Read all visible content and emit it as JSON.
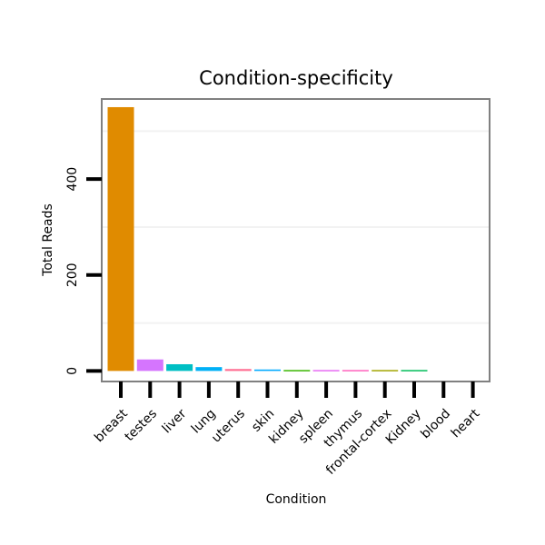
{
  "chart_data": {
    "type": "bar",
    "title": "Condition-specificity",
    "xlabel": "Condition",
    "ylabel": "Total Reads",
    "categories": [
      "breast",
      "testes",
      "liver",
      "lung",
      "uterus",
      "skin",
      "kidney",
      "spleen",
      "thymus",
      "frontal-cortex",
      "Kidney",
      "blood",
      "heart"
    ],
    "values": [
      550,
      24,
      14,
      8,
      4,
      3,
      2,
      2,
      2,
      2,
      2,
      0,
      0
    ],
    "colors": [
      "#E08B00",
      "#D575FE",
      "#00BFC4",
      "#00B0F6",
      "#FF6C91",
      "#00A9FF",
      "#39B600",
      "#E76BF3",
      "#FF62BC",
      "#A3A500",
      "#00BC59",
      "#C49A00",
      "#F8766D"
    ],
    "ylim": [
      -22,
      567
    ],
    "yticks": [
      0,
      200,
      400
    ],
    "grid": true
  }
}
